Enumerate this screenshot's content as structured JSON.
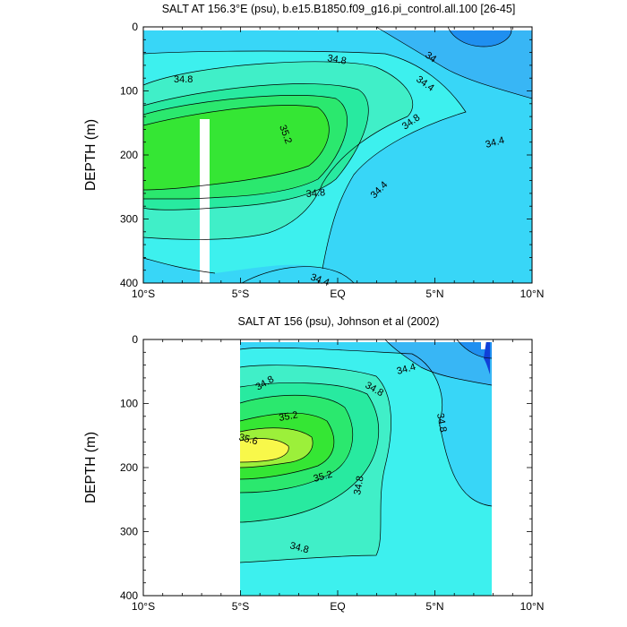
{
  "chart_data": [
    {
      "type": "heatmap",
      "title": "SALT AT 156.3°E (psu), b.e15.B1850.f09_g16.pi_control.all.100 [26-45]",
      "ylabel": "DEPTH (m)",
      "xlabel": "",
      "xlim": [
        -10,
        10
      ],
      "ylim": [
        400,
        0
      ],
      "x_tick_values": [
        -10,
        -5,
        0,
        5,
        10
      ],
      "x_tick_labels": [
        "10°S",
        "5°S",
        "EQ",
        "5°N",
        "10°N"
      ],
      "y_tick_values": [
        0,
        100,
        200,
        300,
        400
      ],
      "y_tick_labels": [
        "0",
        "100",
        "200",
        "300",
        "400"
      ],
      "data_extent": {
        "lon": [
          -10,
          10
        ],
        "depth": [
          5,
          400
        ]
      },
      "missing_column": {
        "lat": [
          -6.7,
          -6.2
        ],
        "depth": [
          145,
          400
        ]
      },
      "contour_labels": [
        {
          "text": "34.8",
          "lat": -7.4,
          "depth": 80
        },
        {
          "text": "34.8",
          "lat": -0.4,
          "depth": 45
        },
        {
          "text": "34",
          "lat": 5.0,
          "depth": 40
        },
        {
          "text": "34.4",
          "lat": 5.3,
          "depth": 85
        },
        {
          "text": "34.8",
          "lat": 3.9,
          "depth": 150
        },
        {
          "text": "35.2",
          "lat": -2.6,
          "depth": 158
        },
        {
          "text": "34.4",
          "lat": 8.3,
          "depth": 168
        },
        {
          "text": "34.8",
          "lat": -1.0,
          "depth": 260
        },
        {
          "text": "34.4",
          "lat": 2.5,
          "depth": 255
        },
        {
          "text": "34.4",
          "lat": -1.0,
          "depth": 390
        }
      ]
    },
    {
      "type": "heatmap",
      "title": "SALT AT 156 (psu), Johnson et al (2002)",
      "ylabel": "DEPTH (m)",
      "xlabel": "",
      "xlim": [
        -10,
        10
      ],
      "ylim": [
        400,
        0
      ],
      "x_tick_values": [
        -10,
        -5,
        0,
        5,
        10
      ],
      "x_tick_labels": [
        "10°S",
        "5°S",
        "EQ",
        "5°N",
        "10°N"
      ],
      "y_tick_values": [
        0,
        100,
        200,
        300,
        400
      ],
      "y_tick_labels": [
        "0",
        "100",
        "200",
        "300",
        "400"
      ],
      "data_extent": {
        "lat": [
          -5,
          8
        ],
        "depth": [
          5,
          400
        ]
      },
      "contour_labels": [
        {
          "text": "34.8",
          "lat": -3.3,
          "depth": 70
        },
        {
          "text": "34.8",
          "lat": 2.0,
          "depth": 63
        },
        {
          "text": "34.4",
          "lat": 3.6,
          "depth": 50
        },
        {
          "text": "35.2",
          "lat": -2.3,
          "depth": 118
        },
        {
          "text": "35.6",
          "lat": -4.5,
          "depth": 158
        },
        {
          "text": "34.8",
          "lat": 5.2,
          "depth": 130
        },
        {
          "text": "35.2",
          "lat": -0.7,
          "depth": 218
        },
        {
          "text": "34.8",
          "lat": 1.2,
          "depth": 232
        },
        {
          "text": "34.8",
          "lat": -1.8,
          "depth": 328
        }
      ]
    }
  ],
  "colors": {
    "s_34_0": "#1f8ff0",
    "s_34_2": "#38b6f5",
    "s_34_4": "#38d6f7",
    "s_34_6": "#3df0ee",
    "s_34_8": "#40efc8",
    "s_35_0": "#28eaa0",
    "s_35_2": "#2be86e",
    "s_35_4": "#35e634",
    "s_35_6": "#9cf03a",
    "s_35_8": "#f8f84a",
    "deep_blue": "#1040d8",
    "missing": "#ffffff"
  }
}
